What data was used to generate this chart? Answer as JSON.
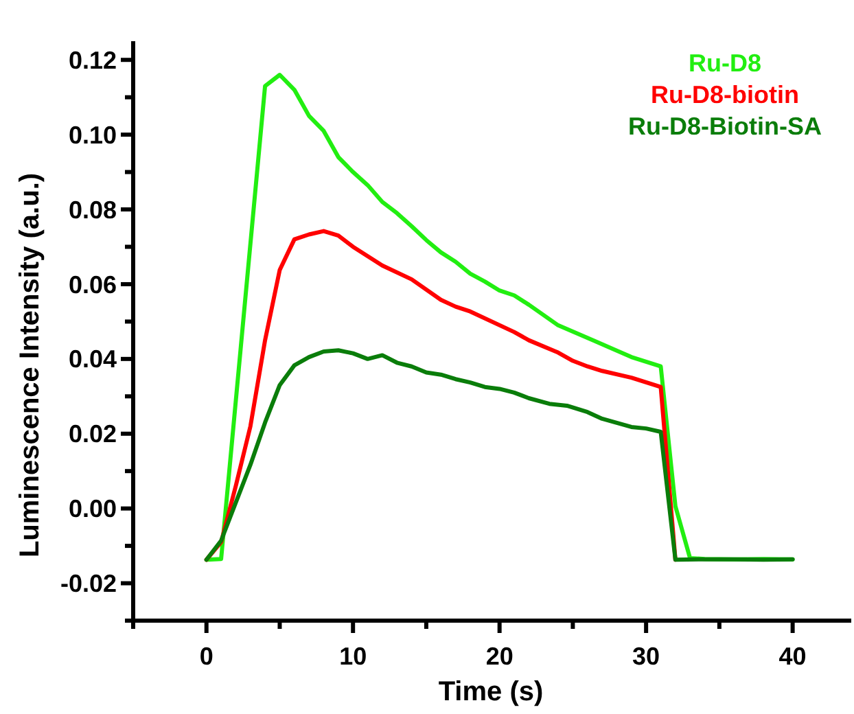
{
  "chart_data": {
    "type": "line",
    "xlabel": "Time (s)",
    "ylabel": "Luminescence Intensity (a.u.)",
    "xlim": [
      -5,
      44
    ],
    "xticks": [
      {
        "value": -5,
        "label": null
      },
      0,
      {
        "value": 5,
        "label": null
      },
      10,
      {
        "value": 15,
        "label": null
      },
      20,
      {
        "value": 25,
        "label": null
      },
      30,
      {
        "value": 35,
        "label": null
      },
      40
    ],
    "ylim": [
      -0.03,
      0.125
    ],
    "yticks": [
      {
        "value": -0.03,
        "label": null
      },
      {
        "value": -0.02,
        "label": "-0.02"
      },
      {
        "value": -0.01,
        "label": null
      },
      {
        "value": 0,
        "label": "0.00"
      },
      {
        "value": 0.01,
        "label": null
      },
      {
        "value": 0.02,
        "label": "0.02"
      },
      {
        "value": 0.03,
        "label": null
      },
      {
        "value": 0.04,
        "label": "0.04"
      },
      {
        "value": 0.05,
        "label": null
      },
      {
        "value": 0.06,
        "label": "0.06"
      },
      {
        "value": 0.07,
        "label": null
      },
      {
        "value": 0.08,
        "label": "0.08"
      },
      {
        "value": 0.09,
        "label": null
      },
      {
        "value": 0.1,
        "label": "0.10"
      },
      {
        "value": 0.11,
        "label": null
      },
      {
        "value": 0.12,
        "label": "0.12"
      }
    ],
    "grid": false,
    "legend": "top right",
    "marker": "none",
    "line_style": "solid",
    "series": [
      {
        "name": "Ru-D8",
        "color": "#22ee11",
        "x": [
          0,
          1,
          4,
          5,
          6,
          7,
          8,
          9,
          10,
          11,
          12,
          13,
          14,
          15,
          16,
          17,
          18,
          19,
          20,
          21,
          22,
          24,
          26.5,
          29,
          31,
          32,
          33,
          34,
          36,
          38,
          40
        ],
        "values": [
          -0.0137,
          -0.0135,
          0.113,
          0.116,
          0.112,
          0.105,
          0.101,
          0.094,
          0.09,
          0.0865,
          0.082,
          0.079,
          0.0755,
          0.0718,
          0.0685,
          0.066,
          0.0628,
          0.0607,
          0.0583,
          0.057,
          0.0545,
          0.049,
          0.0448,
          0.0405,
          0.038,
          0.0006,
          -0.0133,
          -0.0135,
          -0.0136,
          -0.0135,
          -0.0136
        ]
      },
      {
        "name": "Ru-D8-biotin",
        "color": "#ff0000",
        "x": [
          0,
          1,
          2,
          3,
          4,
          5,
          6,
          7,
          8,
          9,
          10,
          12,
          14,
          16,
          17,
          18,
          21,
          22,
          24,
          25,
          26,
          27,
          29,
          31,
          32
        ],
        "values": [
          -0.0137,
          -0.009,
          0.006,
          0.022,
          0.045,
          0.0638,
          0.072,
          0.0733,
          0.0742,
          0.073,
          0.07,
          0.065,
          0.0613,
          0.0558,
          0.054,
          0.0527,
          0.0472,
          0.045,
          0.0417,
          0.0395,
          0.038,
          0.0368,
          0.035,
          0.0325,
          -0.0137
        ]
      },
      {
        "name": "Ru-D8-Biotin-SA",
        "color": "#0a7d0a",
        "x": [
          0,
          1,
          3,
          4,
          5,
          6,
          7,
          8,
          9,
          10,
          11,
          12,
          13,
          14,
          15,
          16,
          17,
          18,
          19,
          20,
          21,
          22,
          23.4,
          24.6,
          26,
          27,
          29,
          30,
          31,
          32,
          34,
          36,
          38,
          40
        ],
        "values": [
          -0.0137,
          -0.0086,
          0.0117,
          0.023,
          0.033,
          0.0383,
          0.0405,
          0.042,
          0.0423,
          0.0415,
          0.04,
          0.041,
          0.039,
          0.038,
          0.0364,
          0.0358,
          0.0346,
          0.0337,
          0.0325,
          0.032,
          0.031,
          0.0295,
          0.028,
          0.0275,
          0.0258,
          0.024,
          0.0218,
          0.0214,
          0.0205,
          -0.0137,
          -0.0136,
          -0.0136,
          -0.0137,
          -0.0136
        ]
      }
    ]
  }
}
